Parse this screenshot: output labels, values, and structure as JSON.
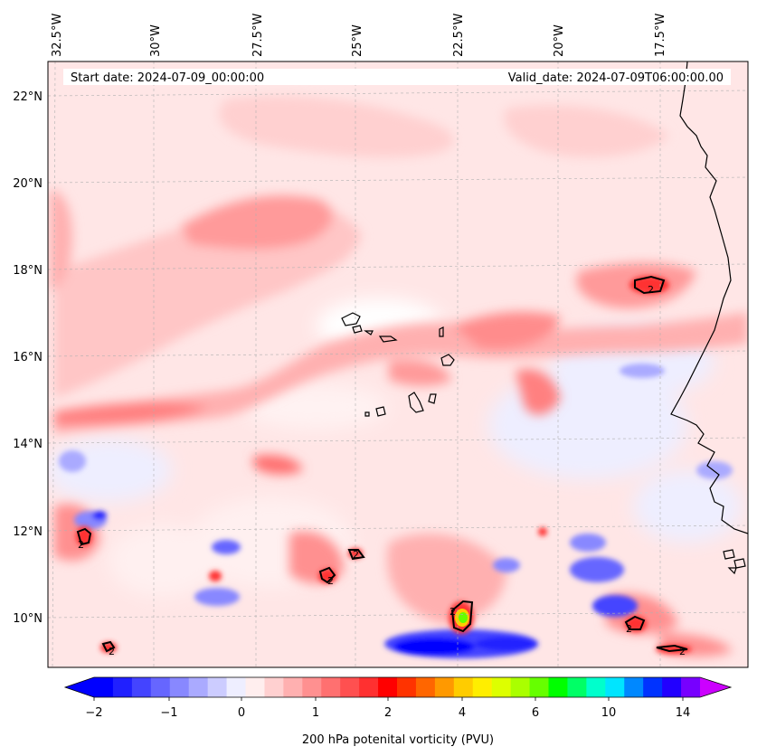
{
  "map": {
    "start_date": "Start date: 2024-07-09_00:00:00",
    "valid_date": "Valid_date: 2024-07-09T06:00:00.00",
    "lon_labels": [
      "32.5°W",
      "30°W",
      "27.5°W",
      "25°W",
      "22.5°W",
      "20°W",
      "17.5°W"
    ],
    "lat_labels": [
      "22°N",
      "20°N",
      "18°N",
      "16°N",
      "14°N",
      "12°N",
      "10°N"
    ],
    "contour_label": "2",
    "extent": {
      "lon_west": "33°W",
      "lon_east": "15.6°W",
      "lat_south": "8.9°N",
      "lat_north": "22.8°N"
    },
    "field": "200 hPa potential vorticity",
    "contour_level_pvu": 2
  },
  "colorbar": {
    "title": "200 hPa potenital vorticity (PVU)",
    "tick_labels": [
      "−2",
      "−1",
      "0",
      "1",
      "2",
      "4",
      "6",
      "10",
      "14"
    ],
    "colors": [
      "#0000ff",
      "#2020ff",
      "#4444ff",
      "#6666ff",
      "#8888ff",
      "#aaaaff",
      "#ccccff",
      "#eeeeff",
      "#ffeeee",
      "#ffd0d0",
      "#ffb0b0",
      "#ff9090",
      "#ff7070",
      "#ff5050",
      "#ff3030",
      "#ff0000",
      "#ff3300",
      "#ff6600",
      "#ff9900",
      "#ffcc00",
      "#ffee00",
      "#ddff00",
      "#aaff00",
      "#66ff00",
      "#00ff00",
      "#00ff66",
      "#00ffcc",
      "#00e5ff",
      "#0088ff",
      "#0033ff",
      "#2200ff",
      "#7700ff"
    ],
    "under_color": "#0000ff",
    "over_color": "#cc00ff"
  }
}
